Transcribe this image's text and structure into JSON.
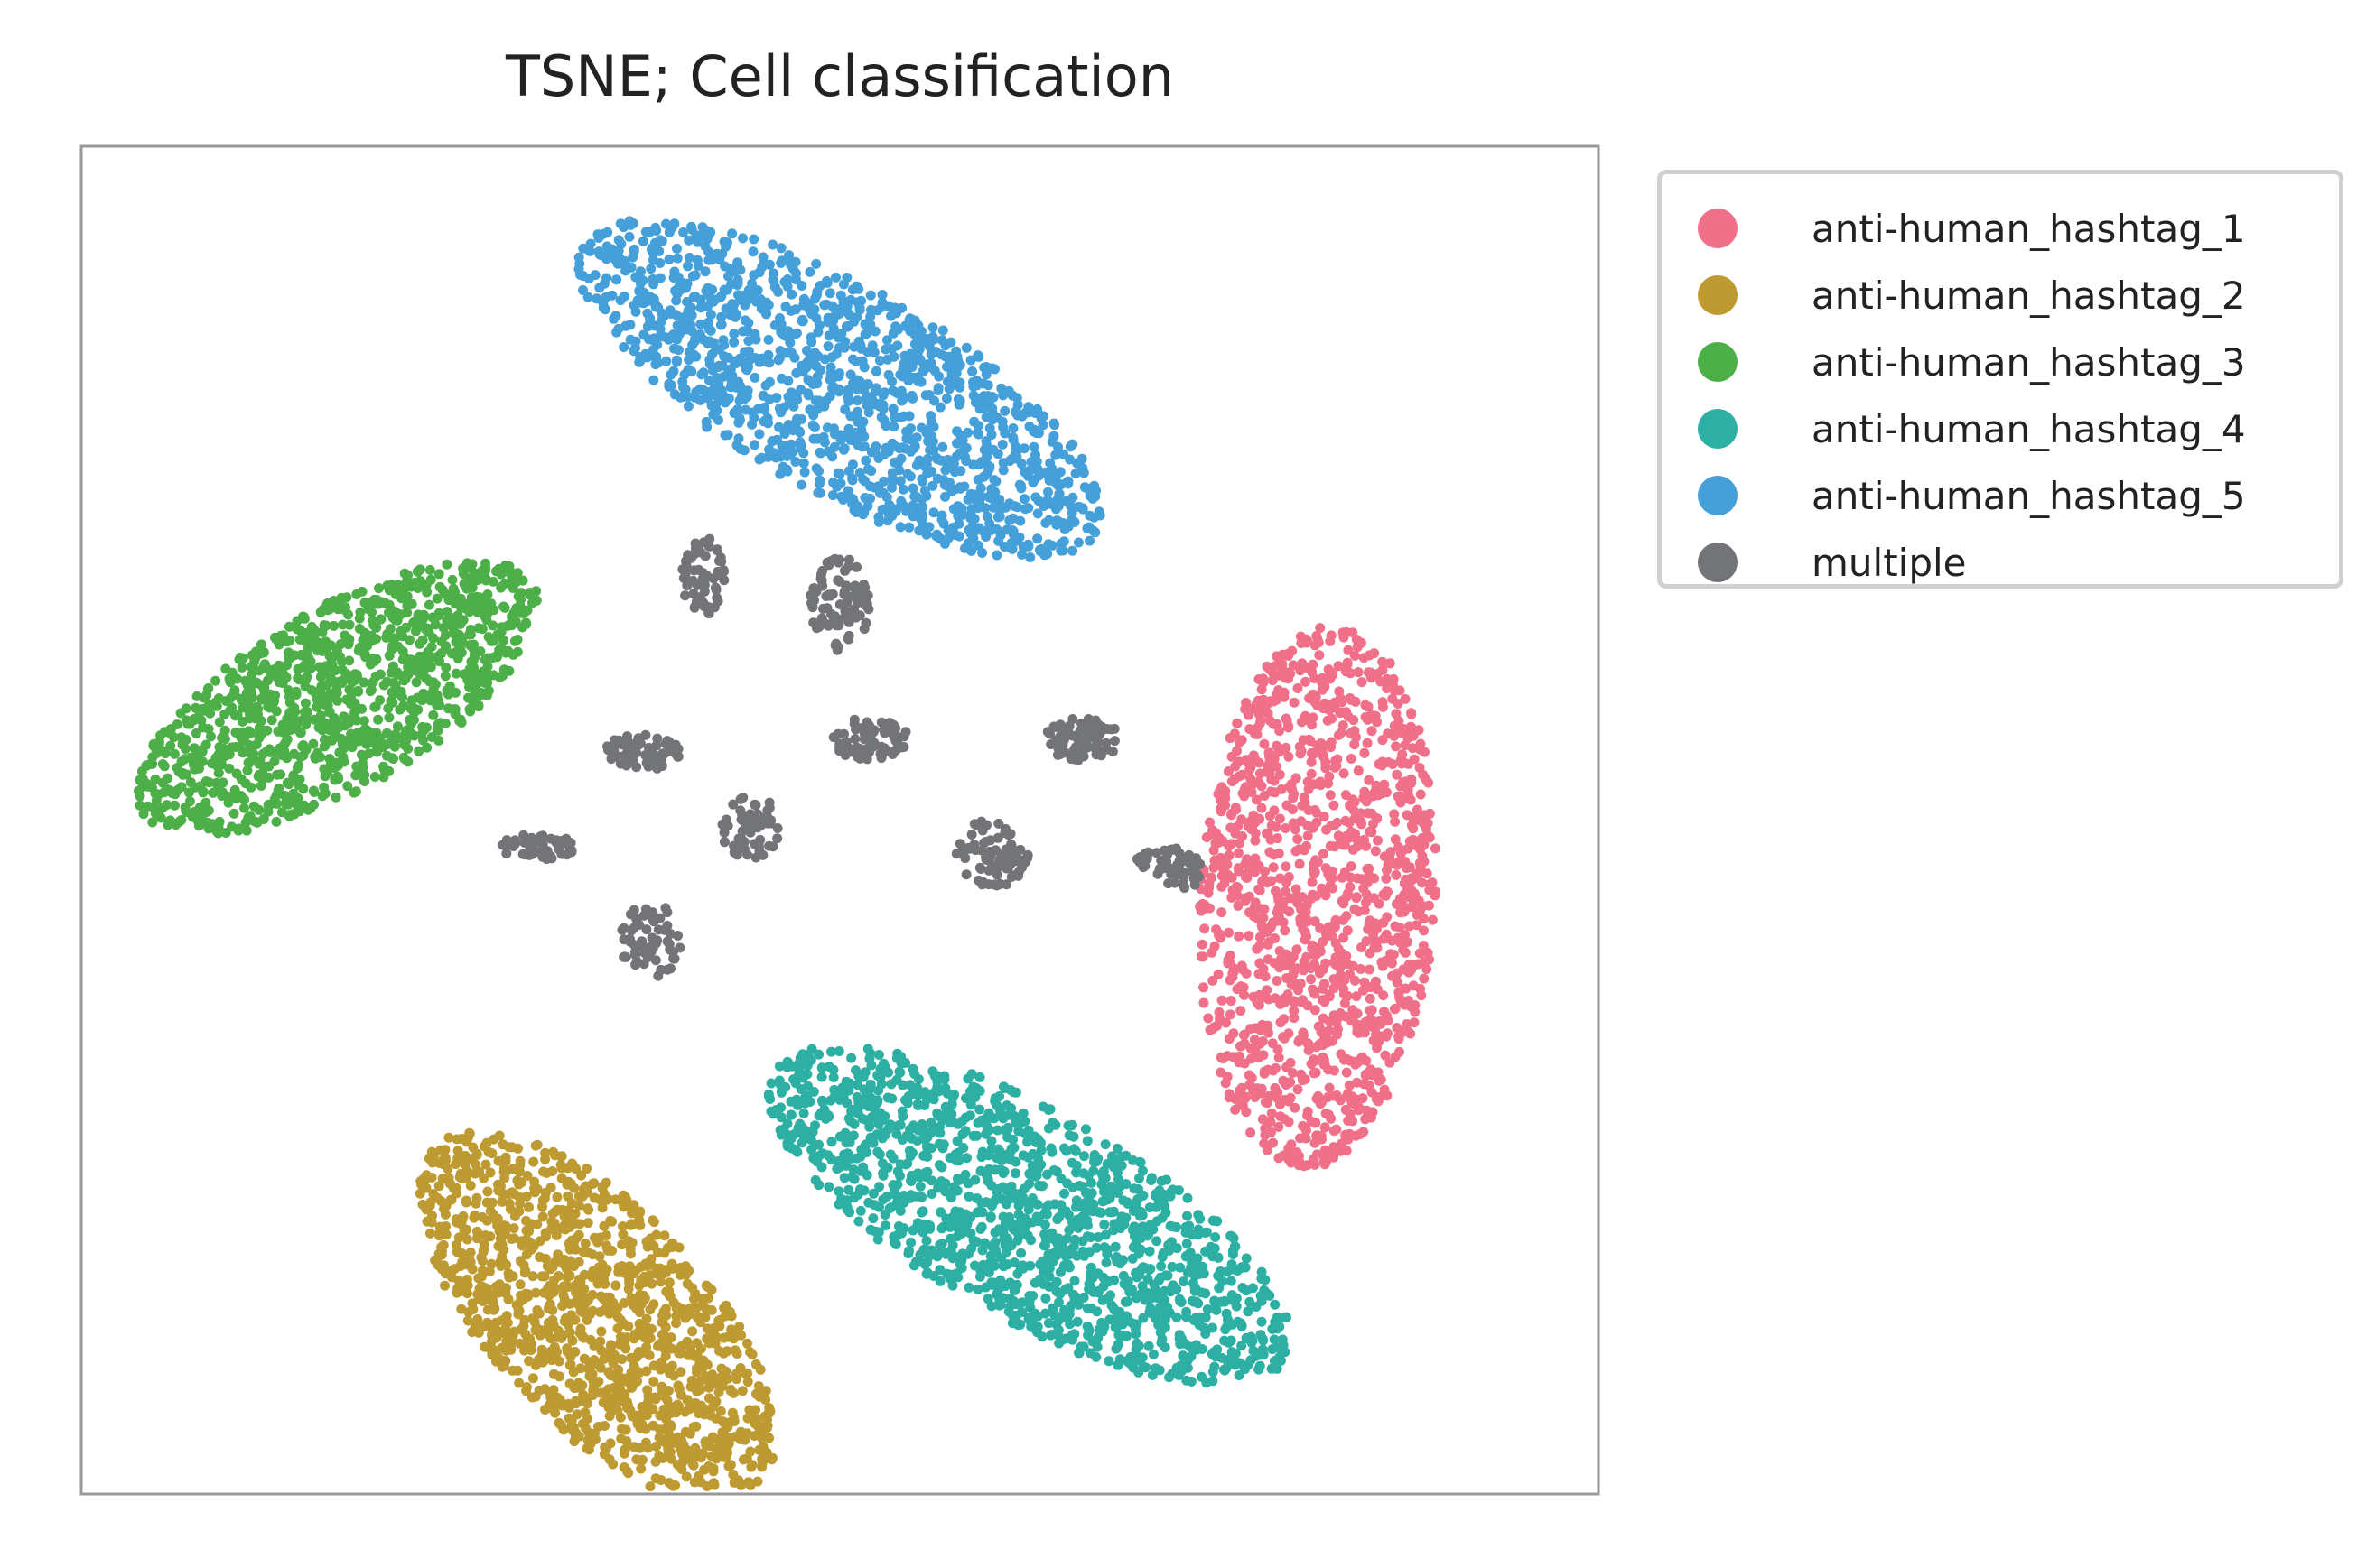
{
  "chart_data": {
    "type": "scatter",
    "title": "TSNE; Cell classification",
    "xlabel": "",
    "ylabel": "",
    "axes_ticks": false,
    "grid": false,
    "legend_position": "outside-right-top",
    "series": [
      {
        "name": "anti-human_hashtag_1",
        "color": "#f07089",
        "clusters": [
          {
            "cx": 0.815,
            "cy": 0.443,
            "rx": 0.078,
            "ry": 0.202,
            "rot": -3,
            "n": 1300
          }
        ]
      },
      {
        "name": "anti-human_hashtag_2",
        "color": "#bd9a32",
        "clusters": [
          {
            "cx": 0.34,
            "cy": 0.132,
            "rx": 0.165,
            "ry": 0.075,
            "rot": -52,
            "n": 1250
          }
        ]
      },
      {
        "name": "anti-human_hashtag_3",
        "color": "#4daf48",
        "clusters": [
          {
            "cx": 0.17,
            "cy": 0.59,
            "rx": 0.155,
            "ry": 0.065,
            "rot": 34,
            "n": 1150
          }
        ]
      },
      {
        "name": "anti-human_hashtag_4",
        "color": "#2db0a3",
        "clusters": [
          {
            "cx": 0.625,
            "cy": 0.207,
            "rx": 0.2,
            "ry": 0.075,
            "rot": -33,
            "n": 1400
          }
        ]
      },
      {
        "name": "anti-human_hashtag_5",
        "color": "#459fd9",
        "clusters": [
          {
            "cx": 0.5,
            "cy": 0.82,
            "rx": 0.2,
            "ry": 0.075,
            "rot": -33,
            "n": 1350
          }
        ]
      },
      {
        "name": "multiple",
        "color": "#737477",
        "clusters": [
          {
            "cx": 0.41,
            "cy": 0.68,
            "rx": 0.014,
            "ry": 0.03,
            "rot": 0,
            "n": 60
          },
          {
            "cx": 0.5,
            "cy": 0.66,
            "rx": 0.02,
            "ry": 0.035,
            "rot": 0,
            "n": 90
          },
          {
            "cx": 0.37,
            "cy": 0.55,
            "rx": 0.025,
            "ry": 0.014,
            "rot": 0,
            "n": 70
          },
          {
            "cx": 0.52,
            "cy": 0.56,
            "rx": 0.025,
            "ry": 0.016,
            "rot": 0,
            "n": 80
          },
          {
            "cx": 0.66,
            "cy": 0.56,
            "rx": 0.025,
            "ry": 0.016,
            "rot": 0,
            "n": 70
          },
          {
            "cx": 0.44,
            "cy": 0.495,
            "rx": 0.02,
            "ry": 0.025,
            "rot": 0,
            "n": 60
          },
          {
            "cx": 0.3,
            "cy": 0.48,
            "rx": 0.025,
            "ry": 0.01,
            "rot": 0,
            "n": 50
          },
          {
            "cx": 0.6,
            "cy": 0.475,
            "rx": 0.025,
            "ry": 0.025,
            "rot": 0,
            "n": 80
          },
          {
            "cx": 0.72,
            "cy": 0.465,
            "rx": 0.025,
            "ry": 0.014,
            "rot": -20,
            "n": 55
          },
          {
            "cx": 0.375,
            "cy": 0.41,
            "rx": 0.02,
            "ry": 0.03,
            "rot": 0,
            "n": 60
          }
        ]
      }
    ]
  }
}
